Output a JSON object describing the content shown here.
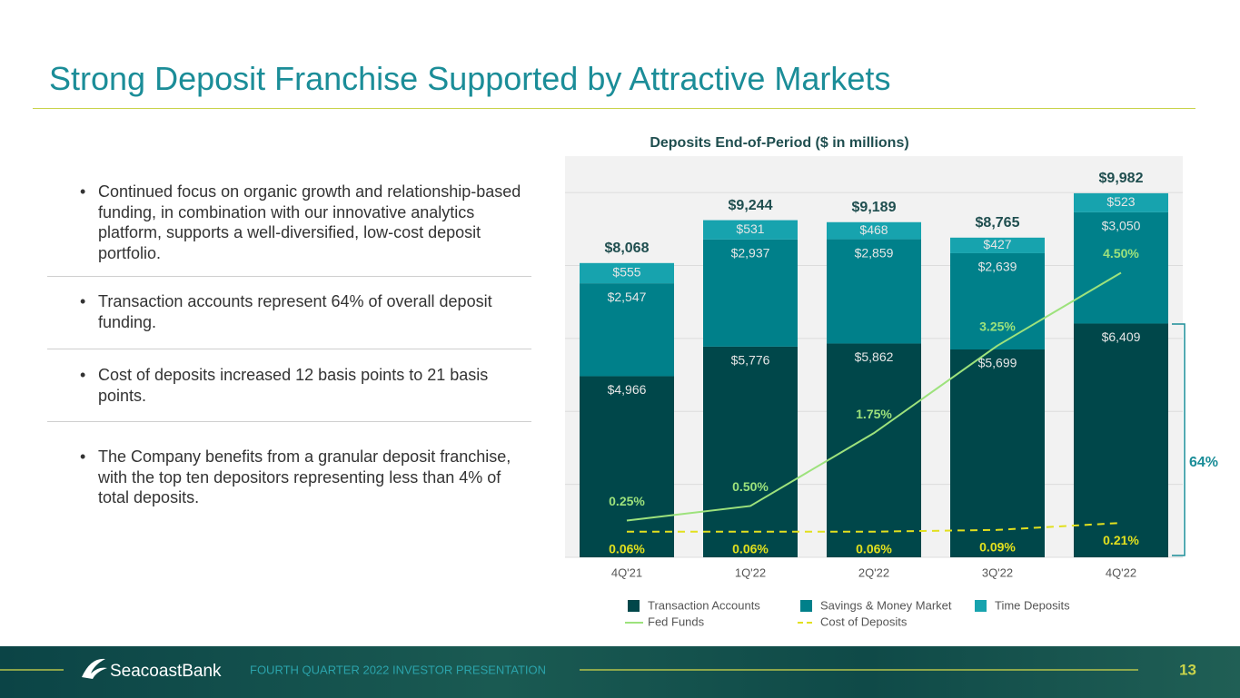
{
  "title": "Strong Deposit Franchise Supported by Attractive Markets",
  "bullets": [
    "Continued focus on organic growth and relationship-based funding, in combination with our innovative analytics platform, supports a well-diversified, low-cost deposit portfolio.",
    "Transaction accounts represent 64% of overall deposit funding.",
    "Cost of deposits increased 12 basis points to 21 basis points.",
    "The Company benefits from a granular deposit franchise, with the top ten depositors representing less than 4% of total deposits."
  ],
  "logo": "SeacoastBank",
  "footer": "FOURTH QUARTER 2022 INVESTOR PRESENTATION",
  "page_number": 13,
  "chart_data": {
    "type": "bar",
    "stacked": true,
    "title": "Deposits End-of-Period ($ in millions)",
    "categories": [
      "4Q'21",
      "1Q'22",
      "2Q'22",
      "3Q'22",
      "4Q'22"
    ],
    "series": [
      {
        "name": "Transaction Accounts",
        "type": "bar",
        "color": "#00474a",
        "values": [
          4966,
          5776,
          5862,
          5699,
          6409
        ],
        "value_labels": [
          "$4,966",
          "$5,776",
          "$5,862",
          "$5,699",
          "$6,409"
        ]
      },
      {
        "name": "Savings & Money Market",
        "type": "bar",
        "color": "#00808a",
        "values": [
          2547,
          2937,
          2859,
          2639,
          3050
        ],
        "value_labels": [
          "$2,547",
          "$2,937",
          "$2,859",
          "$2,639",
          "$3,050"
        ]
      },
      {
        "name": "Time Deposits",
        "type": "bar",
        "color": "#17a3ae",
        "values": [
          555,
          531,
          468,
          427,
          523
        ],
        "value_labels": [
          "$555",
          "$531",
          "$468",
          "$427",
          "$523"
        ]
      },
      {
        "name": "Fed Funds",
        "type": "line",
        "axis": "y2",
        "color": "#9de27c",
        "dashed": false,
        "values": [
          0.25,
          0.5,
          1.75,
          3.25,
          4.5
        ],
        "value_labels": [
          "0.25%",
          "0.50%",
          "1.75%",
          "3.25%",
          "4.50%"
        ]
      },
      {
        "name": "Cost of Deposits",
        "type": "line",
        "axis": "y2",
        "color": "#e2e01e",
        "dashed": true,
        "values": [
          0.06,
          0.06,
          0.06,
          0.09,
          0.21
        ],
        "value_labels": [
          "0.06%",
          "0.06%",
          "0.06%",
          "0.09%",
          "0.21%"
        ]
      }
    ],
    "total_labels": [
      "$8,068",
      "$9,244",
      "$9,189",
      "$8,765",
      "$9,982"
    ],
    "ylim": [
      0,
      11000
    ],
    "yticks": [
      0,
      2000,
      4000,
      6000,
      8000,
      10000
    ],
    "grid": true,
    "y2lim": [
      -0.38,
      6.5
    ],
    "annotation": "64%"
  }
}
